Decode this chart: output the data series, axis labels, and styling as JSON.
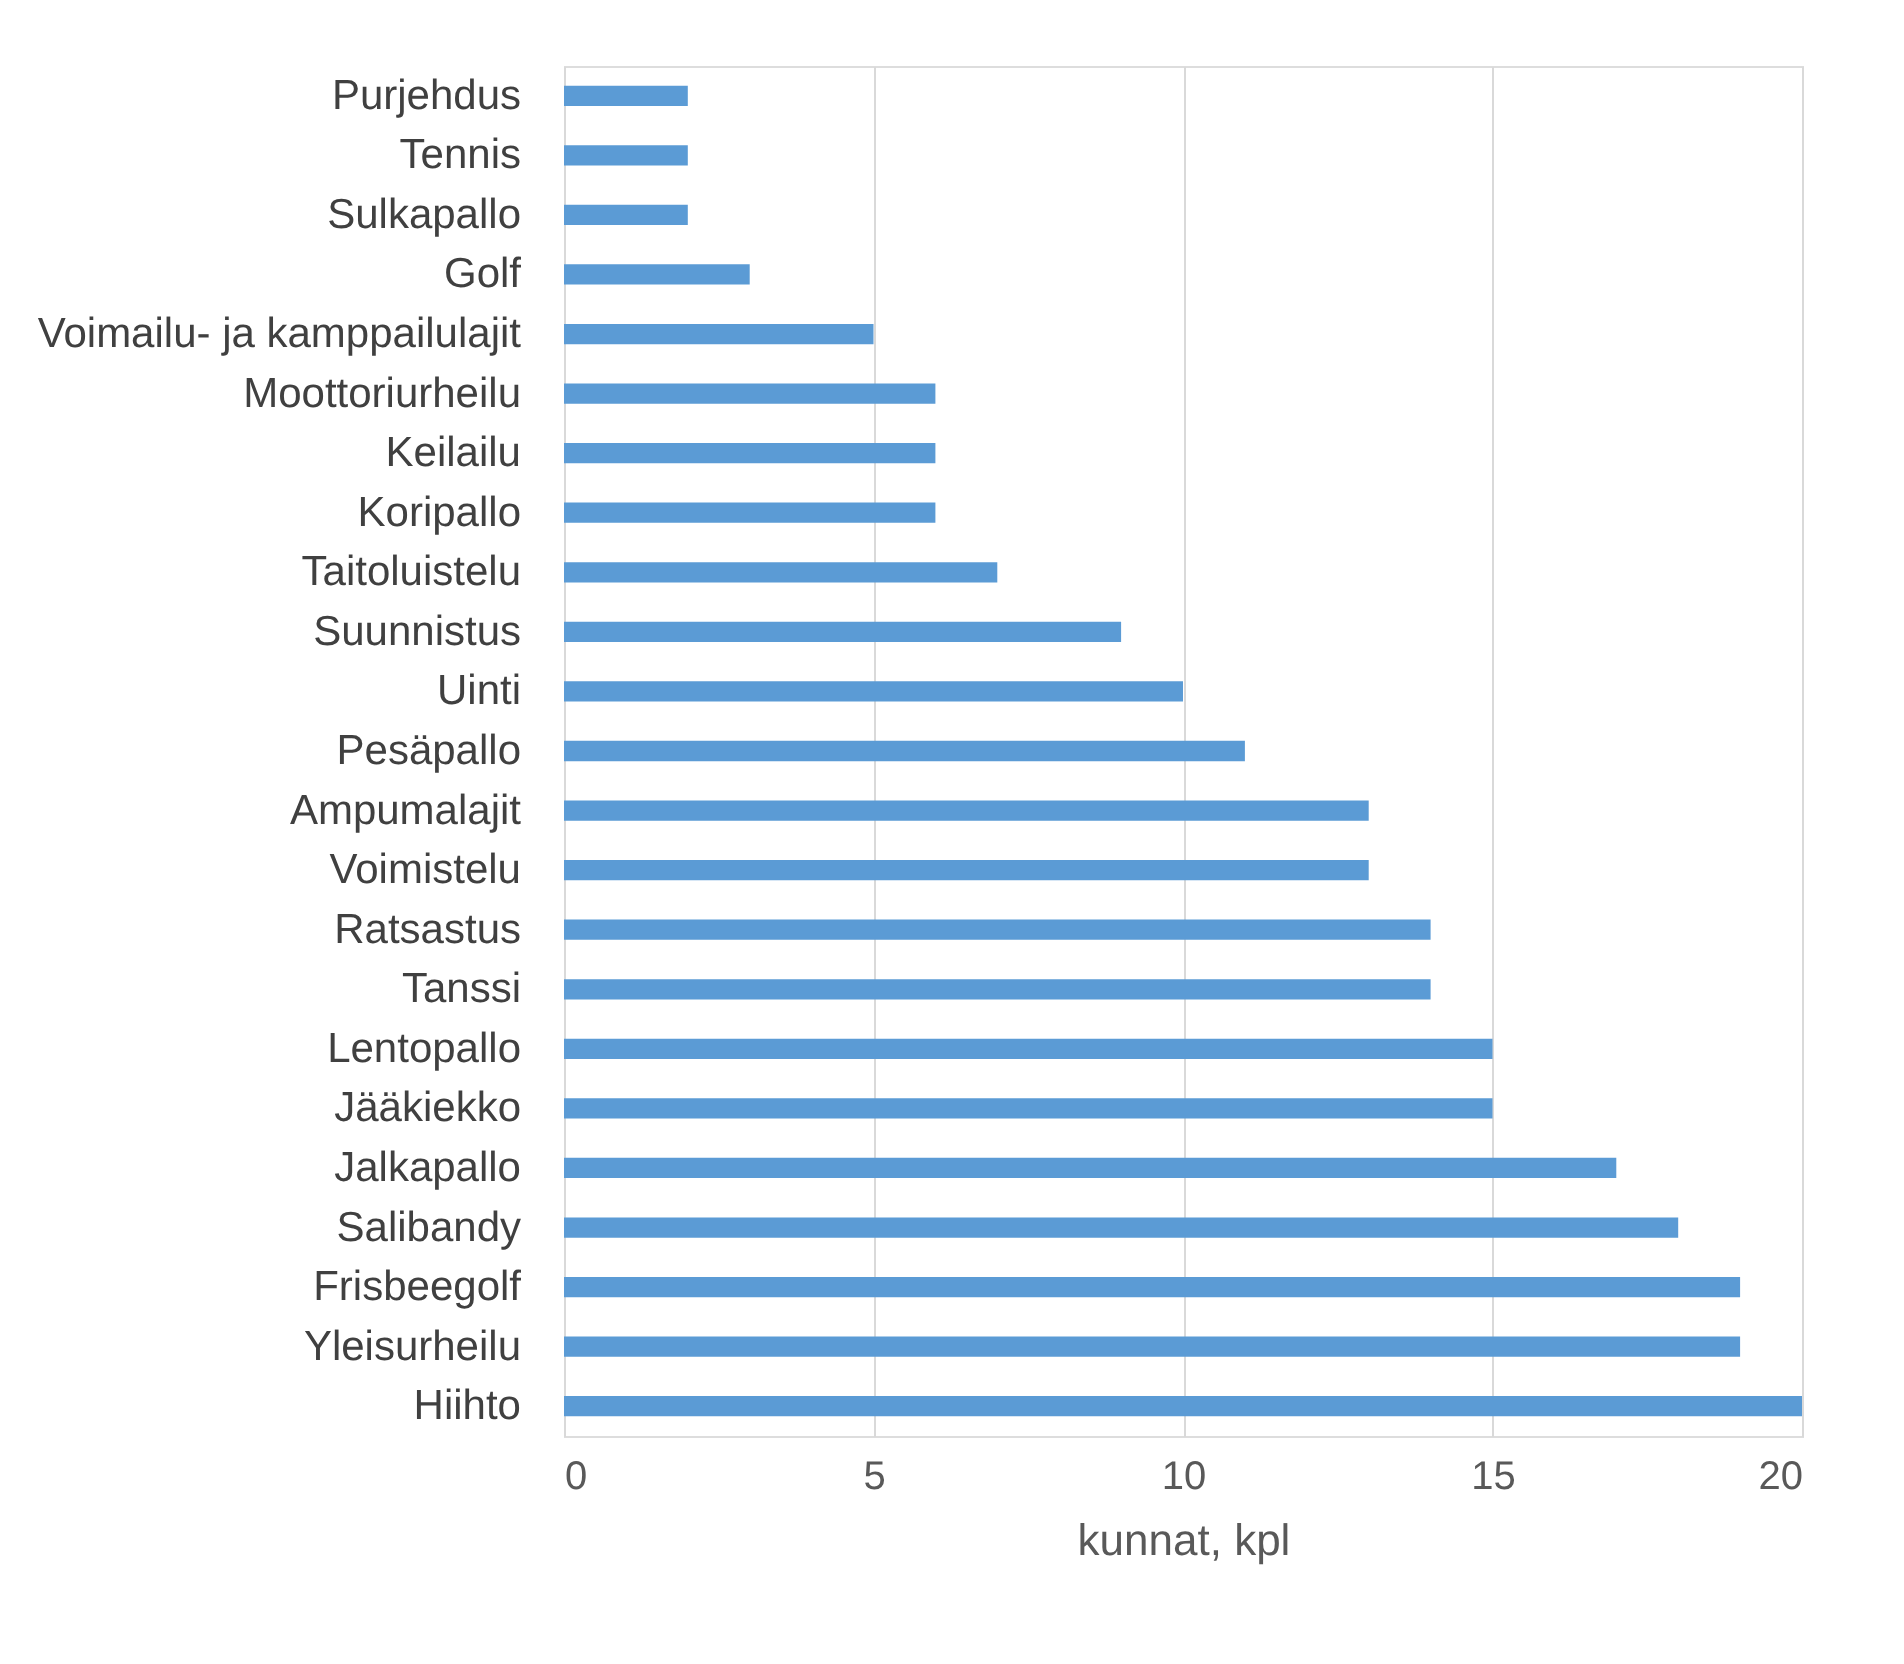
{
  "chart_data": {
    "type": "bar",
    "orientation": "horizontal",
    "xlabel": "kunnat, kpl",
    "categories": [
      "Purjehdus",
      "Tennis",
      "Sulkapallo",
      "Golf",
      "Voimailu- ja kamppailulajit",
      "Moottoriurheilu",
      "Keilailu",
      "Koripallo",
      "Taitoluistelu",
      "Suunnistus",
      "Uinti",
      "Pesäpallo",
      "Ampumalajit",
      "Voimistelu",
      "Ratsastus",
      "Tanssi",
      "Lentopallo",
      "Jääkiekko",
      "Jalkapallo",
      "Salibandy",
      "Frisbeegolf",
      "Yleisurheilu",
      "Hiihto"
    ],
    "values": [
      2,
      2,
      2,
      3,
      5,
      6,
      6,
      6,
      7,
      9,
      10,
      11,
      13,
      13,
      14,
      14,
      15,
      15,
      17,
      18,
      19,
      19,
      20
    ],
    "color": "#5b9bd5",
    "xlim": [
      0,
      20
    ],
    "xticks": [
      0,
      5,
      10,
      15,
      20
    ],
    "grid": "x"
  }
}
